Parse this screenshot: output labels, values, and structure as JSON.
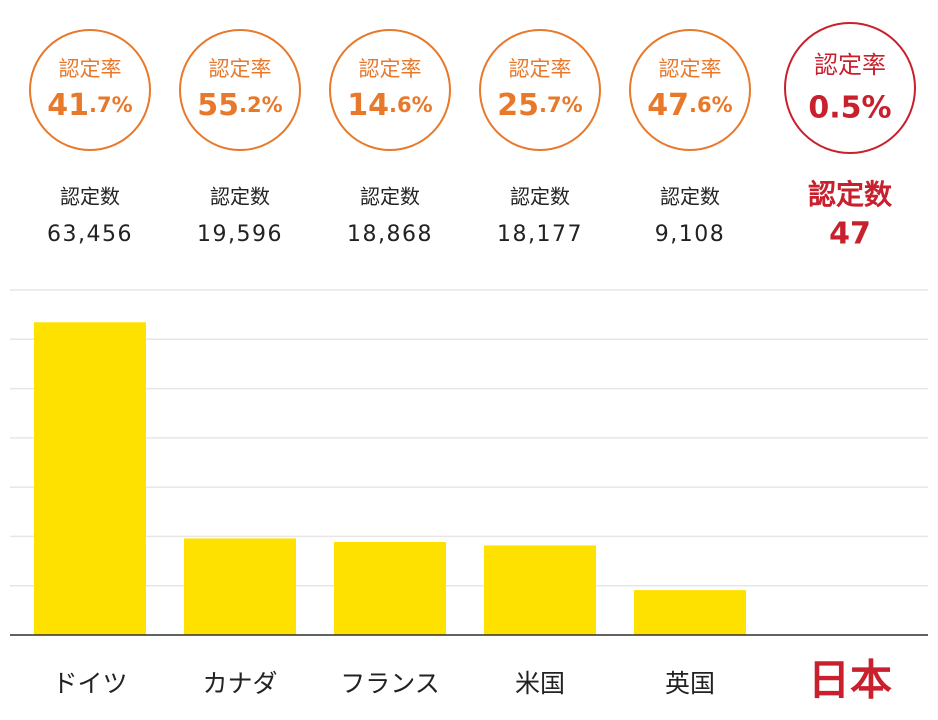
{
  "chart_data": {
    "type": "bar",
    "categories": [
      "ドイツ",
      "カナダ",
      "フランス",
      "米国",
      "英国",
      "日本"
    ],
    "values": [
      63456,
      19596,
      18868,
      18177,
      9108,
      47
    ],
    "value_labels": [
      "63,456",
      "19,596",
      "18,868",
      "18,177",
      "9,108",
      "47"
    ],
    "count_label": "認定数",
    "rate_label": "認定率",
    "rates": [
      41.7,
      55.2,
      14.6,
      25.7,
      47.6,
      0.5
    ],
    "rate_labels": [
      "41.7%",
      "55.2%",
      "14.6%",
      "25.7%",
      "47.6%",
      "0.5%"
    ],
    "color": "#ffe100",
    "rate_color": "#e8782a",
    "highlight_color": "#c8202c",
    "highlight_index": 5,
    "ylim": [
      0,
      70000
    ],
    "yticks": [
      0,
      10000,
      20000,
      30000,
      40000,
      50000,
      60000,
      70000
    ],
    "grid": true
  }
}
